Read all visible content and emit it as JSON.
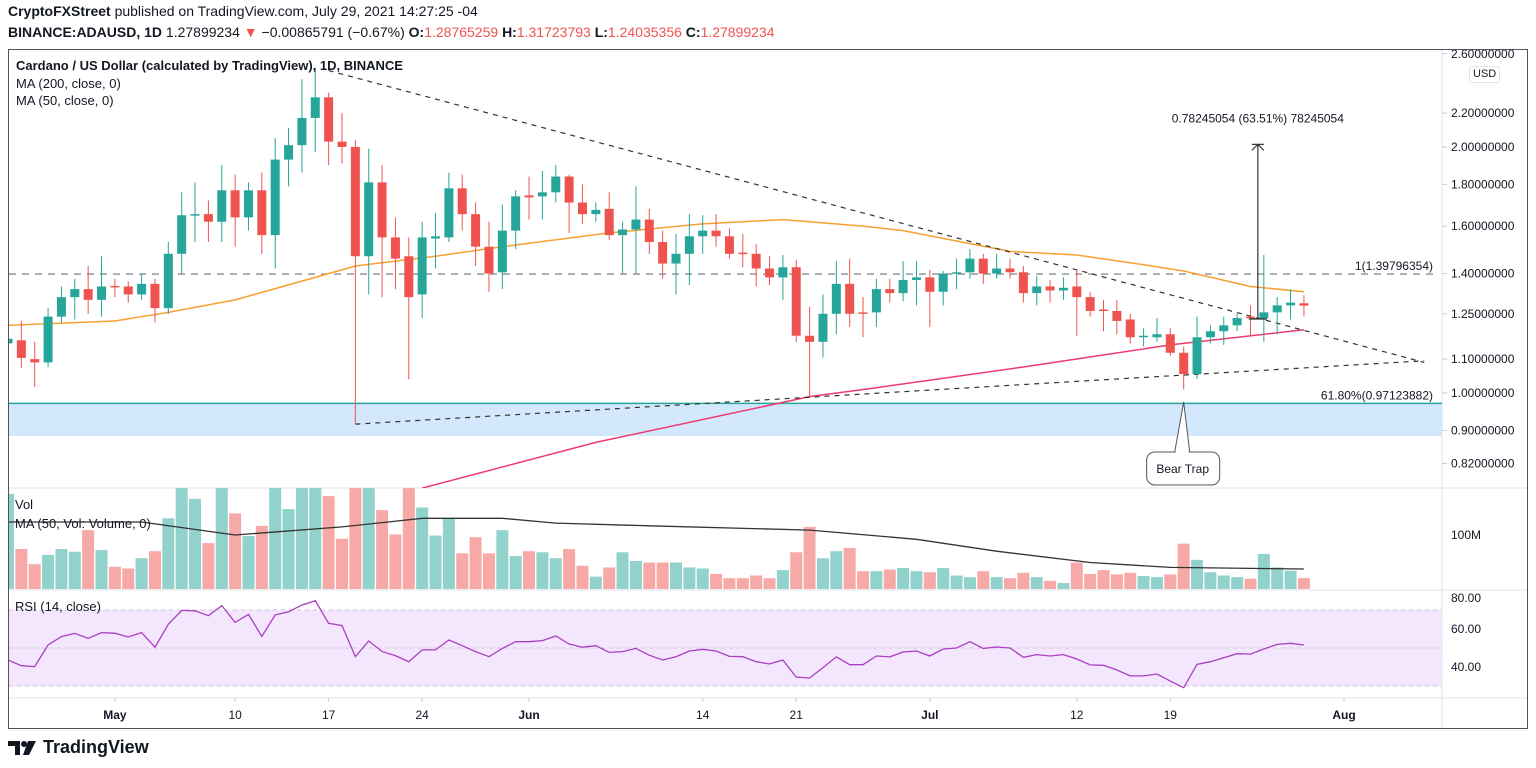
{
  "header": {
    "publisher": "CryptoFXStreet",
    "published_text": " published on TradingView.com, July 29, 2021 14:27:25 -04",
    "symbol": "BINANCE:ADAUSD, 1D",
    "last_price": "1.27899234",
    "change": "−0.00865791 (−0.67%)",
    "open_label": "O:",
    "open": "1.28765259",
    "high_label": "H:",
    "high": "1.31723793",
    "low_label": "L:",
    "low": "1.24035356",
    "close_label": "C:",
    "close": "1.27899234",
    "direction_icon": "triangle-down-icon"
  },
  "legend": {
    "title": "Cardano / US Dollar (calculated by TradingView), 1D, BINANCE",
    "ma200": "MA (200, close, 0)",
    "ma50": "MA (50, close, 0)",
    "vol": "Vol",
    "vol_ma": "MA (50, Vol: Volume, 0)",
    "rsi": "RSI (14, close)"
  },
  "currency": "USD",
  "footer": {
    "brand": "TradingView"
  },
  "colors": {
    "up": "#26a69a",
    "down": "#ef5350",
    "vol_up": "#92d2cc",
    "vol_down": "#f7a9a7",
    "ma50": "#f7a030",
    "ma200": "#ef3a6e",
    "vol_ma": "#333333",
    "rsi": "#ab3fc0",
    "rsi_band": "#f3e6fd",
    "fib": "#26a69a",
    "zone": "#d3e8fc"
  },
  "chart_data": {
    "type": "candlestick",
    "scale": "log",
    "price_axis_ticks": [
      "2.60000000",
      "2.20000000",
      "2.00000000",
      "1.80000000",
      "1.60000000",
      "1.40000000",
      "1.25000000",
      "1.10000000",
      "1.00000000",
      "0.90000000",
      "0.82000000"
    ],
    "price_axis_values": [
      2.6,
      2.2,
      2.0,
      1.8,
      1.6,
      1.4,
      1.25,
      1.1,
      1.0,
      0.9,
      0.82
    ],
    "time_axis": [
      {
        "date": "2021-05-01",
        "label": "May",
        "bold": true
      },
      {
        "date": "2021-05-10",
        "label": "10",
        "bold": false
      },
      {
        "date": "2021-05-17",
        "label": "17",
        "bold": false
      },
      {
        "date": "2021-05-24",
        "label": "24",
        "bold": false
      },
      {
        "date": "2021-06-01",
        "label": "Jun",
        "bold": true
      },
      {
        "date": "2021-06-14",
        "label": "14",
        "bold": false
      },
      {
        "date": "2021-06-21",
        "label": "21",
        "bold": false
      },
      {
        "date": "2021-07-01",
        "label": "Jul",
        "bold": true
      },
      {
        "date": "2021-07-12",
        "label": "12",
        "bold": false
      },
      {
        "date": "2021-07-19",
        "label": "19",
        "bold": false
      },
      {
        "date": "2021-08-01",
        "label": "Aug",
        "bold": true
      }
    ],
    "candles_columns": [
      "date",
      "open",
      "high",
      "low",
      "close"
    ],
    "candles": [
      [
        "2021-04-23",
        1.15,
        1.17,
        1.14,
        1.165
      ],
      [
        "2021-04-24",
        1.16,
        1.225,
        1.073,
        1.104
      ],
      [
        "2021-04-25",
        1.1,
        1.155,
        1.017,
        1.09
      ],
      [
        "2021-04-26",
        1.09,
        1.27,
        1.075,
        1.24
      ],
      [
        "2021-04-27",
        1.24,
        1.35,
        1.22,
        1.31
      ],
      [
        "2021-04-28",
        1.31,
        1.38,
        1.23,
        1.34
      ],
      [
        "2021-04-29",
        1.34,
        1.43,
        1.25,
        1.3
      ],
      [
        "2021-04-30",
        1.3,
        1.47,
        1.24,
        1.35
      ],
      [
        "2021-05-01",
        1.352,
        1.38,
        1.31,
        1.348
      ],
      [
        "2021-05-02",
        1.35,
        1.37,
        1.29,
        1.32
      ],
      [
        "2021-05-03",
        1.32,
        1.4,
        1.3,
        1.36
      ],
      [
        "2021-05-04",
        1.36,
        1.38,
        1.22,
        1.27
      ],
      [
        "2021-05-05",
        1.27,
        1.53,
        1.25,
        1.48
      ],
      [
        "2021-05-06",
        1.48,
        1.76,
        1.4,
        1.65
      ],
      [
        "2021-05-07",
        1.65,
        1.81,
        1.53,
        1.655
      ],
      [
        "2021-05-08",
        1.655,
        1.72,
        1.53,
        1.62
      ],
      [
        "2021-05-09",
        1.62,
        1.9,
        1.53,
        1.77
      ],
      [
        "2021-05-10",
        1.77,
        1.85,
        1.51,
        1.64
      ],
      [
        "2021-05-11",
        1.64,
        1.81,
        1.58,
        1.77
      ],
      [
        "2021-05-12",
        1.77,
        1.86,
        1.48,
        1.56
      ],
      [
        "2021-05-13",
        1.56,
        2.05,
        1.42,
        1.93
      ],
      [
        "2021-05-14",
        1.93,
        2.11,
        1.79,
        2.01
      ],
      [
        "2021-05-15",
        2.01,
        2.42,
        1.86,
        2.17
      ],
      [
        "2021-05-16",
        2.17,
        2.5,
        1.97,
        2.3
      ],
      [
        "2021-05-17",
        2.3,
        2.33,
        1.9,
        2.03
      ],
      [
        "2021-05-18",
        2.03,
        2.2,
        1.91,
        2.0
      ],
      [
        "2021-05-19",
        2.0,
        2.04,
        0.916,
        1.47
      ],
      [
        "2021-05-20",
        1.47,
        1.99,
        1.32,
        1.81
      ],
      [
        "2021-05-21",
        1.81,
        1.9,
        1.31,
        1.55
      ],
      [
        "2021-05-22",
        1.55,
        1.64,
        1.34,
        1.46
      ],
      [
        "2021-05-23",
        1.47,
        1.55,
        1.04,
        1.31
      ],
      [
        "2021-05-24",
        1.32,
        1.62,
        1.235,
        1.55
      ],
      [
        "2021-05-25",
        1.545,
        1.66,
        1.42,
        1.555
      ],
      [
        "2021-05-26",
        1.55,
        1.86,
        1.53,
        1.78
      ],
      [
        "2021-05-27",
        1.78,
        1.85,
        1.58,
        1.655
      ],
      [
        "2021-05-28",
        1.655,
        1.71,
        1.43,
        1.51
      ],
      [
        "2021-05-29",
        1.51,
        1.62,
        1.33,
        1.4
      ],
      [
        "2021-05-30",
        1.405,
        1.7,
        1.34,
        1.58
      ],
      [
        "2021-05-31",
        1.58,
        1.77,
        1.5,
        1.74
      ],
      [
        "2021-06-01",
        1.745,
        1.84,
        1.63,
        1.735
      ],
      [
        "2021-06-02",
        1.74,
        1.87,
        1.63,
        1.76
      ],
      [
        "2021-06-03",
        1.76,
        1.9,
        1.71,
        1.84
      ],
      [
        "2021-06-04",
        1.84,
        1.85,
        1.57,
        1.71
      ],
      [
        "2021-06-05",
        1.71,
        1.8,
        1.61,
        1.655
      ],
      [
        "2021-06-06",
        1.655,
        1.71,
        1.62,
        1.675
      ],
      [
        "2021-06-07",
        1.68,
        1.76,
        1.54,
        1.56
      ],
      [
        "2021-06-08",
        1.56,
        1.62,
        1.4,
        1.585
      ],
      [
        "2021-06-09",
        1.585,
        1.79,
        1.4,
        1.63
      ],
      [
        "2021-06-10",
        1.63,
        1.68,
        1.48,
        1.53
      ],
      [
        "2021-06-11",
        1.53,
        1.58,
        1.38,
        1.44
      ],
      [
        "2021-06-12",
        1.44,
        1.565,
        1.32,
        1.48
      ],
      [
        "2021-06-13",
        1.48,
        1.655,
        1.355,
        1.555
      ],
      [
        "2021-06-14",
        1.555,
        1.65,
        1.48,
        1.58
      ],
      [
        "2021-06-15",
        1.58,
        1.655,
        1.51,
        1.555
      ],
      [
        "2021-06-16",
        1.555,
        1.59,
        1.46,
        1.48
      ],
      [
        "2021-06-17",
        1.485,
        1.565,
        1.425,
        1.48
      ],
      [
        "2021-06-18",
        1.48,
        1.52,
        1.35,
        1.42
      ],
      [
        "2021-06-19",
        1.42,
        1.47,
        1.355,
        1.385
      ],
      [
        "2021-06-20",
        1.385,
        1.475,
        1.3,
        1.425
      ],
      [
        "2021-06-21",
        1.425,
        1.455,
        1.155,
        1.175
      ],
      [
        "2021-06-22",
        1.175,
        1.275,
        0.99,
        1.155
      ],
      [
        "2021-06-23",
        1.155,
        1.32,
        1.105,
        1.25
      ],
      [
        "2021-06-24",
        1.25,
        1.45,
        1.18,
        1.36
      ],
      [
        "2021-06-25",
        1.36,
        1.46,
        1.205,
        1.25
      ],
      [
        "2021-06-26",
        1.255,
        1.31,
        1.17,
        1.25
      ],
      [
        "2021-06-27",
        1.255,
        1.38,
        1.205,
        1.34
      ],
      [
        "2021-06-28",
        1.34,
        1.38,
        1.29,
        1.325
      ],
      [
        "2021-06-29",
        1.325,
        1.45,
        1.295,
        1.375
      ],
      [
        "2021-06-30",
        1.375,
        1.45,
        1.28,
        1.385
      ],
      [
        "2021-07-01",
        1.385,
        1.415,
        1.205,
        1.33
      ],
      [
        "2021-07-02",
        1.33,
        1.41,
        1.28,
        1.4
      ],
      [
        "2021-07-03",
        1.4,
        1.46,
        1.34,
        1.405
      ],
      [
        "2021-07-04",
        1.405,
        1.5,
        1.38,
        1.46
      ],
      [
        "2021-07-05",
        1.46,
        1.48,
        1.36,
        1.4
      ],
      [
        "2021-07-06",
        1.4,
        1.48,
        1.38,
        1.42
      ],
      [
        "2021-07-07",
        1.42,
        1.46,
        1.38,
        1.405
      ],
      [
        "2021-07-08",
        1.405,
        1.43,
        1.29,
        1.325
      ],
      [
        "2021-07-09",
        1.325,
        1.39,
        1.28,
        1.35
      ],
      [
        "2021-07-10",
        1.35,
        1.375,
        1.29,
        1.335
      ],
      [
        "2021-07-11",
        1.335,
        1.385,
        1.3,
        1.345
      ],
      [
        "2021-07-12",
        1.35,
        1.415,
        1.175,
        1.31
      ],
      [
        "2021-07-13",
        1.31,
        1.33,
        1.24,
        1.26
      ],
      [
        "2021-07-14",
        1.265,
        1.3,
        1.19,
        1.26
      ],
      [
        "2021-07-15",
        1.26,
        1.3,
        1.18,
        1.225
      ],
      [
        "2021-07-16",
        1.23,
        1.25,
        1.15,
        1.17
      ],
      [
        "2021-07-17",
        1.17,
        1.2,
        1.14,
        1.175
      ],
      [
        "2021-07-18",
        1.17,
        1.235,
        1.155,
        1.18
      ],
      [
        "2021-07-19",
        1.18,
        1.2,
        1.11,
        1.12
      ],
      [
        "2021-07-20",
        1.12,
        1.14,
        1.01,
        1.055
      ],
      [
        "2021-07-21",
        1.055,
        1.24,
        1.04,
        1.17
      ],
      [
        "2021-07-22",
        1.17,
        1.21,
        1.15,
        1.19
      ],
      [
        "2021-07-23",
        1.19,
        1.24,
        1.145,
        1.21
      ],
      [
        "2021-07-24",
        1.21,
        1.25,
        1.19,
        1.235
      ],
      [
        "2021-07-25",
        1.24,
        1.28,
        1.175,
        1.235
      ],
      [
        "2021-07-26",
        1.235,
        1.475,
        1.155,
        1.255
      ],
      [
        "2021-07-27",
        1.255,
        1.31,
        1.18,
        1.28
      ],
      [
        "2021-07-28",
        1.28,
        1.34,
        1.23,
        1.29
      ],
      [
        "2021-07-29",
        1.28765259,
        1.31723793,
        1.24035356,
        1.27899234
      ]
    ],
    "ma50": [
      [
        "2021-04-23",
        1.21
      ],
      [
        "2021-05-01",
        1.225
      ],
      [
        "2021-05-05",
        1.255
      ],
      [
        "2021-05-10",
        1.3
      ],
      [
        "2021-05-17",
        1.4
      ],
      [
        "2021-05-19",
        1.43
      ],
      [
        "2021-05-25",
        1.47
      ],
      [
        "2021-05-30",
        1.51
      ],
      [
        "2021-06-07",
        1.57
      ],
      [
        "2021-06-14",
        1.61
      ],
      [
        "2021-06-20",
        1.63
      ],
      [
        "2021-06-26",
        1.6
      ],
      [
        "2021-06-29",
        1.58
      ],
      [
        "2021-07-07",
        1.49
      ],
      [
        "2021-07-12",
        1.475
      ],
      [
        "2021-07-17",
        1.435
      ],
      [
        "2021-07-20",
        1.41
      ],
      [
        "2021-07-25",
        1.35
      ],
      [
        "2021-07-29",
        1.33
      ]
    ],
    "ma200": [
      [
        "2021-05-24",
        0.765
      ],
      [
        "2021-06-06",
        0.87
      ],
      [
        "2021-06-22",
        0.99
      ],
      [
        "2021-06-27",
        1.015
      ],
      [
        "2021-07-08",
        1.076
      ],
      [
        "2021-07-19",
        1.145
      ],
      [
        "2021-07-29",
        1.195
      ]
    ],
    "volume_axis_ticks": [
      "100M"
    ],
    "volume_axis_values_millions": [
      100
    ],
    "volume_millions": [
      176,
      74,
      46,
      63,
      74,
      69,
      109,
      72,
      41,
      38,
      57,
      70,
      131,
      200,
      167,
      85,
      200,
      140,
      98,
      117,
      200,
      148,
      200,
      200,
      172,
      93,
      220,
      200,
      146,
      101,
      200,
      151,
      99,
      131,
      66,
      96,
      66,
      109,
      61,
      70,
      68,
      57,
      74,
      43,
      23,
      40,
      68,
      52,
      49,
      49,
      49,
      40,
      38,
      28,
      20,
      20,
      25,
      20,
      35,
      68,
      115,
      57,
      70,
      76,
      33,
      33,
      36,
      39,
      33,
      31,
      39,
      25,
      22,
      33,
      22,
      20,
      30,
      22,
      15,
      11,
      49,
      28,
      35,
      27,
      30,
      24,
      22,
      27,
      84,
      54,
      31,
      25,
      22,
      19,
      65,
      40,
      34,
      20
    ],
    "volume_ma_millions": [
      [
        "2021-04-23",
        124
      ],
      [
        "2021-05-03",
        124
      ],
      [
        "2021-05-10",
        100
      ],
      [
        "2021-05-18",
        115
      ],
      [
        "2021-05-24",
        131
      ],
      [
        "2021-05-30",
        131
      ],
      [
        "2021-06-03",
        122
      ],
      [
        "2021-06-10",
        117
      ],
      [
        "2021-06-22",
        109
      ],
      [
        "2021-06-30",
        92
      ],
      [
        "2021-07-06",
        70
      ],
      [
        "2021-07-13",
        49
      ],
      [
        "2021-07-19",
        40
      ],
      [
        "2021-07-29",
        37
      ]
    ],
    "rsi_axis_ticks": [
      "80.00",
      "60.00",
      "40.00"
    ],
    "rsi_axis_values": [
      80,
      60,
      40
    ],
    "rsi_bands": [
      70,
      50,
      30
    ],
    "rsi": [
      43.7,
      40.7,
      40.2,
      51.6,
      56,
      57.7,
      55.1,
      58.1,
      57.8,
      55.8,
      58.1,
      50.4,
      62.5,
      69.8,
      69.6,
      67,
      72.3,
      63.5,
      67.7,
      56.1,
      67.4,
      69.1,
      72.6,
      74.9,
      63,
      61.8,
      45.4,
      53.7,
      48.1,
      46,
      42.8,
      49,
      49,
      54.2,
      51.2,
      48.1,
      45.4,
      49.8,
      53.3,
      53.3,
      53.9,
      56.3,
      52.1,
      50.4,
      51.2,
      47.7,
      48.1,
      49.8,
      46.2,
      43.7,
      45.4,
      48.4,
      49.3,
      48.4,
      45.6,
      45.4,
      42.8,
      41.6,
      43.7,
      34.7,
      34.2,
      39.7,
      45.3,
      41.2,
      41.2,
      45.8,
      45.3,
      47.9,
      48.4,
      45.8,
      49.5,
      50,
      53.3,
      49.8,
      50.5,
      50,
      45.1,
      46.5,
      45.8,
      46.5,
      44.2,
      41.1,
      40.9,
      38.4,
      35.3,
      35.3,
      36.3,
      32.6,
      29.1,
      41.4,
      42.8,
      44.9,
      47,
      46.8,
      49.5,
      51.9,
      52.5,
      51.6
    ],
    "drawings": {
      "descending_trendline": [
        [
          "2021-05-17",
          2.48
        ],
        [
          "2021-08-07",
          1.09
        ]
      ],
      "ascending_trendline": [
        [
          "2021-05-19",
          0.916
        ],
        [
          "2021-08-07",
          1.095
        ]
      ],
      "fib_level_1": {
        "value": 1.39796354,
        "label": "1(1.39796354)"
      },
      "fib_level_618": {
        "value": 0.97123882,
        "label": "61.80%(0.97123882)"
      },
      "support_zone": [
        0.886,
        0.97123882
      ],
      "measure": {
        "date": "2021-07-26",
        "from": 1.232,
        "to": 2.0145,
        "label": "0.78245054 (63.51%) 78245054"
      },
      "callout": {
        "date": "2021-07-20",
        "price": 0.975,
        "label": "Bear Trap"
      }
    }
  }
}
